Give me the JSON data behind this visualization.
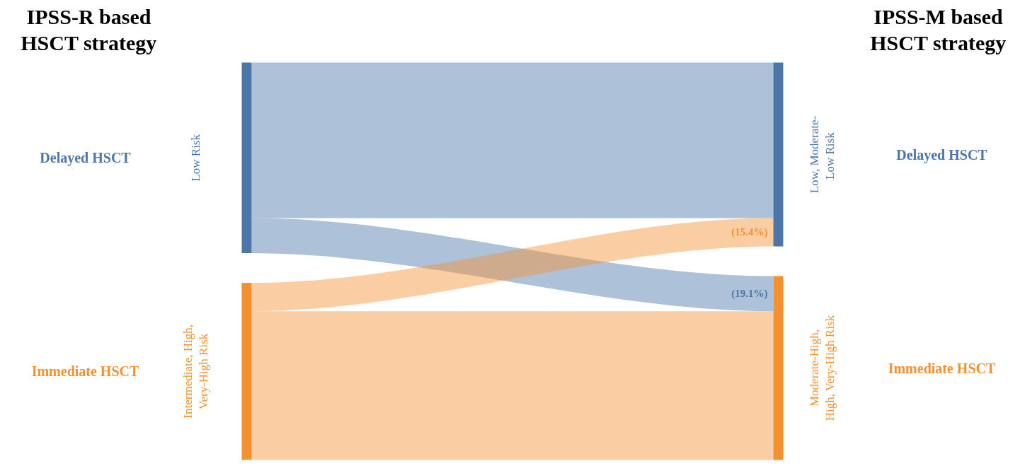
{
  "chart_data": {
    "type": "other",
    "title": "IPSS-R based\nHSCT strategy",
    "categories": [
      "Low, Moderate-\nLow  Risk",
      "Moderate-High,\nHigh, Very-High Risk"
    ],
    "series": [
      {
        "name": "Low Risk",
        "color": "#4a76a8",
        "values": [
          null,
          19.1
        ],
        "value_labels": [
          null,
          "(19.1%)"
        ]
      },
      {
        "name": "Intermediate, High,\nVery-High Risk",
        "color": "#f39130",
        "values": [
          15.4,
          null
        ],
        "value_labels": [
          "(15.4%)",
          null
        ]
      }
    ],
    "annotations": [
      "IPSS-M based\nHSCT strategy",
      "Delayed HSCT",
      "Immediate HSCT",
      "Delayed HSCT",
      "Immediate HSCT"
    ]
  }
}
